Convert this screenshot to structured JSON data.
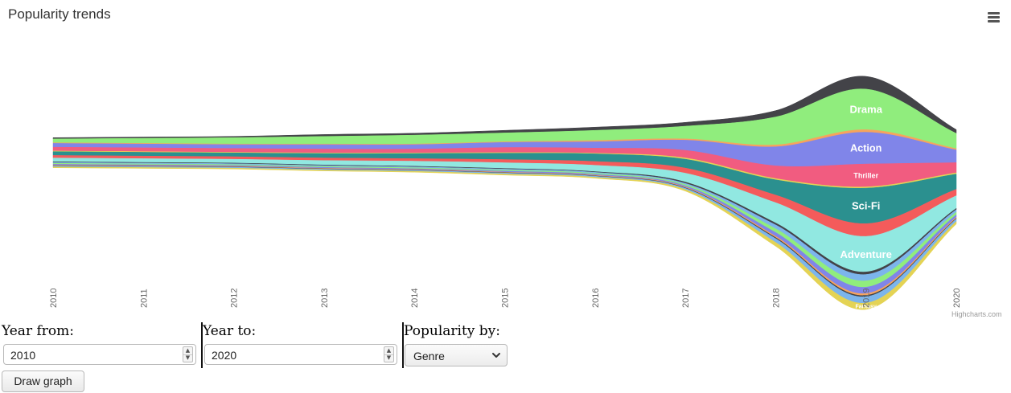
{
  "chart_data": {
    "type": "area",
    "subtype": "streamgraph",
    "title": "Popularity trends",
    "categories": [
      "2010",
      "2011",
      "2012",
      "2013",
      "2014",
      "2015",
      "2016",
      "2017",
      "2018",
      "2019",
      "2020"
    ],
    "legend": "none",
    "grid": false,
    "series": [
      {
        "name": "",
        "color": "#434348",
        "values": [
          1,
          1,
          1,
          1.5,
          1.5,
          2,
          2.5,
          3,
          5,
          10,
          3
        ]
      },
      {
        "name": "Drama",
        "color": "#90ed7d",
        "values": [
          3,
          4,
          5,
          6,
          7,
          7,
          8,
          10,
          22,
          32,
          12
        ]
      },
      {
        "name": "",
        "color": "#f7a35c",
        "values": [
          0.5,
          0.5,
          0.5,
          0.5,
          0.5,
          0.5,
          1,
          1,
          1.5,
          2,
          1
        ]
      },
      {
        "name": "Action",
        "color": "#8085e9",
        "values": [
          3,
          3,
          3,
          3.5,
          3.5,
          4,
          5,
          8,
          15,
          25,
          10
        ]
      },
      {
        "name": "Thriller",
        "color": "#f15c80",
        "values": [
          3,
          3,
          3,
          3,
          3,
          4,
          4,
          6,
          10,
          18,
          8
        ]
      },
      {
        "name": "",
        "color": "#e4d354",
        "values": [
          0.5,
          0.5,
          0.5,
          0.5,
          0.5,
          0.5,
          0.5,
          1,
          1,
          1,
          1
        ]
      },
      {
        "name": "Sci-Fi",
        "color": "#2b908f",
        "values": [
          3,
          3,
          3,
          3.5,
          4,
          5,
          6,
          7,
          12,
          28,
          12
        ]
      },
      {
        "name": "",
        "color": "#f45b5b",
        "values": [
          2,
          2,
          2,
          2,
          2,
          2.5,
          3,
          4,
          6,
          10,
          5
        ]
      },
      {
        "name": "Adventure",
        "color": "#91e8e1",
        "values": [
          3,
          3,
          3,
          3.5,
          4,
          4.5,
          5,
          7,
          16,
          28,
          10
        ]
      },
      {
        "name": "",
        "color": "#434348",
        "values": [
          0.5,
          0.5,
          0.5,
          0.5,
          0.5,
          0.5,
          0.5,
          1,
          1.5,
          2,
          1
        ]
      },
      {
        "name": "",
        "color": "#7cb5ec",
        "values": [
          0.7,
          0.7,
          0.7,
          0.7,
          0.7,
          0.8,
          0.8,
          1,
          3,
          5,
          2
        ]
      },
      {
        "name": "",
        "color": "#90ed7d",
        "values": [
          0.7,
          0.7,
          0.7,
          0.7,
          0.7,
          0.8,
          0.8,
          1,
          3,
          5,
          2
        ]
      },
      {
        "name": "",
        "color": "#8085e9",
        "values": [
          0.7,
          0.7,
          0.7,
          0.7,
          0.7,
          0.8,
          0.8,
          1,
          3,
          5,
          2
        ]
      },
      {
        "name": "",
        "color": "#f7a35c",
        "values": [
          0.4,
          0.4,
          0.4,
          0.4,
          0.4,
          0.4,
          0.4,
          0.5,
          1,
          1.5,
          0.8
        ]
      },
      {
        "name": "",
        "color": "#434348",
        "values": [
          0.3,
          0.3,
          0.3,
          0.3,
          0.3,
          0.3,
          0.3,
          0.4,
          0.8,
          1,
          0.5
        ]
      },
      {
        "name": "",
        "color": "#7cb5ec",
        "values": [
          0.7,
          0.7,
          0.7,
          0.7,
          0.7,
          0.8,
          0.8,
          1,
          3,
          5,
          2
        ]
      },
      {
        "name": "Fantasy",
        "color": "#e4d354",
        "values": [
          0.7,
          0.7,
          0.7,
          0.7,
          0.7,
          0.8,
          0.8,
          1.2,
          3,
          5,
          2
        ]
      }
    ]
  },
  "credits": "Highcharts.com",
  "colors": {
    "menu_icon": "#555555",
    "tick_text": "#666666",
    "title": "#333333"
  },
  "icons": {
    "menu": "hamburger-menu-icon",
    "spinner_up": "spinner-up-icon",
    "spinner_down": "spinner-down-icon",
    "select": "chevron-down-icon"
  },
  "form": {
    "year_from": {
      "label": "Year from:",
      "value": "2010"
    },
    "year_to": {
      "label": "Year to:",
      "value": "2020"
    },
    "popularity_by": {
      "label": "Popularity by:",
      "value": "Genre"
    },
    "draw_button": "Draw graph"
  }
}
